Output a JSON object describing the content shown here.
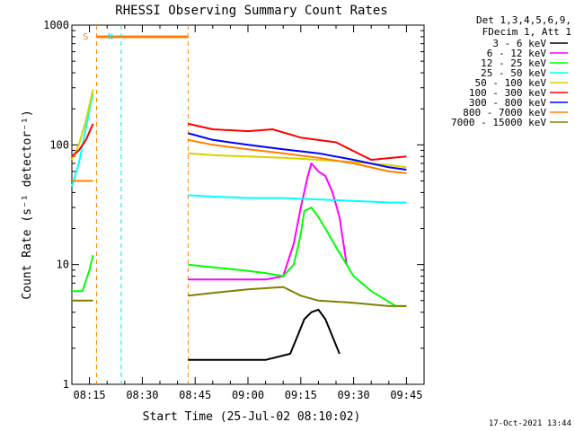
{
  "chart_data": {
    "type": "line",
    "title": "RHESSI Observing Summary Count Rates",
    "xlabel": "Start Time (25-Jul-02 08:10:02)",
    "ylabel": "Count Rate (s⁻¹ detector⁻¹)",
    "yscale": "log",
    "ylim": [
      1,
      1000
    ],
    "xlim": [
      "08:10",
      "09:50"
    ],
    "x_ticks": [
      "08:15",
      "08:30",
      "08:45",
      "09:00",
      "09:15",
      "09:30",
      "09:45"
    ],
    "y_ticks": [
      "1",
      "10",
      "100",
      "1000"
    ],
    "legend_title": [
      "Det 1,3,4,5,6,9,",
      "FDecim 1, Att 1"
    ],
    "legend_position": "right",
    "timestamp": "17-Oct-2021 13:44",
    "flag_markers": [
      {
        "label": "S",
        "start": "08:17",
        "end": "08:43",
        "color": "#ff8000"
      },
      {
        "label": "N",
        "start": "08:24",
        "end": "",
        "color": "#00e5ee"
      }
    ],
    "series": [
      {
        "name": "3 - 6 keV",
        "color": "#000000",
        "segments": [
          {
            "x": [
              "08:43",
              "08:50",
              "08:58",
              "09:05",
              "09:12",
              "09:14",
              "09:16",
              "09:18",
              "09:20",
              "09:22",
              "09:24",
              "09:26"
            ],
            "y": [
              1.6,
              1.6,
              1.6,
              1.6,
              1.8,
              2.5,
              3.5,
              4.0,
              4.2,
              3.5,
              2.5,
              1.8
            ]
          }
        ]
      },
      {
        "name": "6 - 12 keV",
        "color": "#ff00ff",
        "segments": [
          {
            "x": [
              "08:43",
              "08:50",
              "08:58",
              "09:05",
              "09:10",
              "09:13",
              "09:15",
              "09:17",
              "09:18",
              "09:20",
              "09:22",
              "09:24",
              "09:26",
              "09:28"
            ],
            "y": [
              7.5,
              7.5,
              7.5,
              7.5,
              8,
              15,
              30,
              55,
              70,
              60,
              55,
              40,
              25,
              10
            ]
          }
        ]
      },
      {
        "name": "12 - 25 keV",
        "color": "#00ff00",
        "segments": [
          {
            "x": [
              "08:10",
              "08:13",
              "08:15",
              "08:16"
            ],
            "y": [
              6,
              6,
              9,
              12
            ]
          },
          {
            "x": [
              "08:43",
              "08:50",
              "08:58",
              "09:05",
              "09:10",
              "09:13",
              "09:15",
              "09:16",
              "09:18",
              "09:20",
              "09:22",
              "09:25",
              "09:28",
              "09:30",
              "09:35",
              "09:42",
              "09:45"
            ],
            "y": [
              10,
              9.5,
              9,
              8.5,
              8,
              10,
              18,
              28,
              30,
              25,
              20,
              14,
              10,
              8,
              6,
              4.5,
              4.5
            ]
          }
        ]
      },
      {
        "name": "25 - 50 keV",
        "color": "#00ffff",
        "segments": [
          {
            "x": [
              "08:10",
              "08:12",
              "08:14",
              "08:16"
            ],
            "y": [
              45,
              70,
              140,
              270
            ]
          },
          {
            "x": [
              "08:43",
              "08:50",
              "09:00",
              "09:10",
              "09:20",
              "09:30",
              "09:40",
              "09:45"
            ],
            "y": [
              38,
              37,
              36,
              36,
              35,
              34,
              33,
              33
            ]
          }
        ]
      },
      {
        "name": "50 - 100 keV",
        "color": "#d4d400",
        "segments": [
          {
            "x": [
              "08:10",
              "08:12",
              "08:14",
              "08:16"
            ],
            "y": [
              75,
              100,
              160,
              290
            ]
          },
          {
            "x": [
              "08:43",
              "08:50",
              "09:00",
              "09:10",
              "09:20",
              "09:30",
              "09:40",
              "09:45"
            ],
            "y": [
              85,
              82,
              80,
              78,
              75,
              72,
              68,
              65
            ]
          }
        ]
      },
      {
        "name": "100 - 300 keV",
        "color": "#ff0000",
        "segments": [
          {
            "x": [
              "08:10",
              "08:12",
              "08:14",
              "08:16"
            ],
            "y": [
              80,
              90,
              110,
              150
            ]
          },
          {
            "x": [
              "08:43",
              "08:50",
              "09:00",
              "09:07",
              "09:15",
              "09:25",
              "09:35",
              "09:45"
            ],
            "y": [
              150,
              135,
              130,
              135,
              115,
              105,
              75,
              80
            ]
          }
        ]
      },
      {
        "name": "300 - 800 keV",
        "color": "#0000ff",
        "segments": [
          {
            "x": [
              "08:43",
              "08:50",
              "09:00",
              "09:10",
              "09:20",
              "09:30",
              "09:40",
              "09:45"
            ],
            "y": [
              125,
              110,
              100,
              92,
              85,
              75,
              65,
              62
            ]
          }
        ]
      },
      {
        "name": "800 - 7000 keV",
        "color": "#ff8000",
        "segments": [
          {
            "x": [
              "08:10",
              "08:13",
              "08:16"
            ],
            "y": [
              50,
              50,
              50
            ]
          },
          {
            "x": [
              "08:43",
              "08:50",
              "09:00",
              "09:10",
              "09:20",
              "09:30",
              "09:40",
              "09:45"
            ],
            "y": [
              110,
              100,
              92,
              85,
              78,
              70,
              60,
              58
            ]
          }
        ]
      },
      {
        "name": "7000 - 15000 keV",
        "color": "#808000",
        "segments": [
          {
            "x": [
              "08:10",
              "08:13",
              "08:16"
            ],
            "y": [
              5,
              5,
              5
            ]
          },
          {
            "x": [
              "08:43",
              "08:50",
              "09:00",
              "09:10",
              "09:15",
              "09:20",
              "09:30",
              "09:40",
              "09:45"
            ],
            "y": [
              5.5,
              5.8,
              6.2,
              6.5,
              5.5,
              5,
              4.8,
              4.5,
              4.5
            ]
          }
        ]
      }
    ]
  }
}
